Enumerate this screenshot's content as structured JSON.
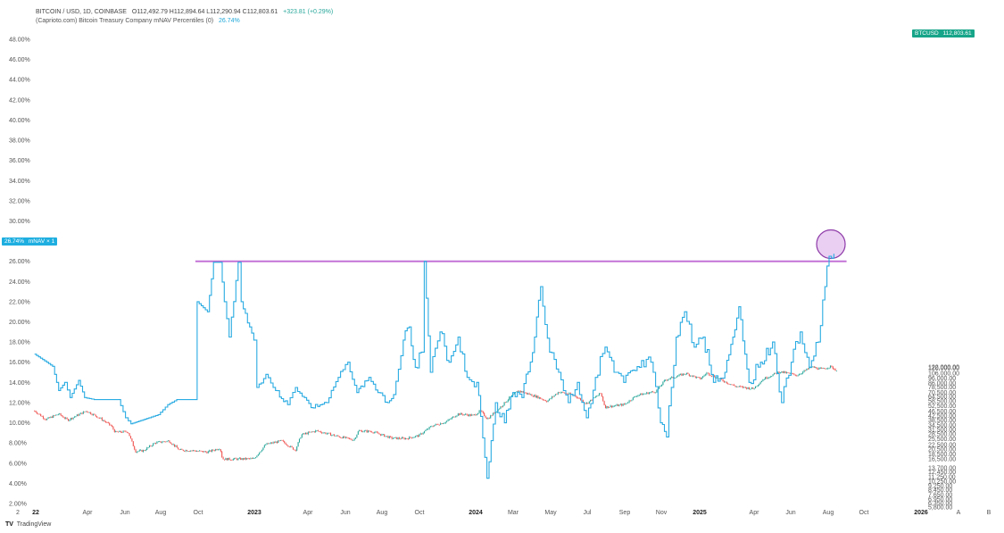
{
  "legend": {
    "line1": {
      "symbol": "BITCOIN / USD, 1D, COINBASE",
      "ohlc": "O112,492.79  H112,894.64  L112,290.94  C112,803.61",
      "change": "+323.81 (+0.29%)"
    },
    "line2": {
      "indicator": "(Caprioto.com) Bitcoin Treasury Company mNAV Percentiles (0)",
      "value": "26.74%"
    }
  },
  "price_tag": {
    "symbol": "BTCUSD",
    "value": "112,803.61"
  },
  "mnav_tag": {
    "value": "26.74%",
    "label": "mNAV × 1"
  },
  "brand": {
    "icon": "tradingview-logo-icon",
    "logo": "TV",
    "name": "TradingView"
  },
  "colors": {
    "mnav_line": "#29abe2",
    "candle_up": "#26a69a",
    "candle_down": "#ef5350",
    "resistance_line": "#c06ad4",
    "highlight_circle": "#d8a8e8",
    "price_tag": "#17a589"
  },
  "chart_data": {
    "type": "line",
    "x_labels": [
      "2",
      "22",
      "Apr",
      "Jun",
      "Aug",
      "Oct",
      "2023",
      "Apr",
      "Jun",
      "Aug",
      "Oct",
      "2024",
      "Mar",
      "May",
      "Jul",
      "Sep",
      "Nov",
      "2025",
      "Apr",
      "Jun",
      "Aug",
      "Oct",
      "2026",
      "A",
      "B"
    ],
    "bold_x_labels": [
      "22",
      "2023",
      "2024",
      "2025",
      "2026"
    ],
    "left_axis": {
      "unit": "percent",
      "ticks": [
        "48.00%",
        "46.00%",
        "44.00%",
        "42.00%",
        "40.00%",
        "38.00%",
        "36.00%",
        "34.00%",
        "32.00%",
        "30.00%",
        "28.00%",
        "26.00%",
        "24.00%",
        "22.00%",
        "20.00%",
        "18.00%",
        "16.00%",
        "14.00%",
        "12.00%",
        "10.00%",
        "8.00%",
        "6.00%",
        "4.00%",
        "2.00%"
      ],
      "range": [
        2,
        48
      ]
    },
    "right_axis": {
      "scale": "log",
      "ticks": [
        "122,000.00",
        "120,000.00",
        "106,000.00",
        "96,000.00",
        "86,000.00",
        "78,500.00",
        "70,500.00",
        "64,500.00",
        "58,500.00",
        "52,500.00",
        "46,500.00",
        "42,500.00",
        "38,500.00",
        "34,500.00",
        "31,500.00",
        "28,500.00",
        "25,500.00",
        "22,500.00",
        "20,500.00",
        "18,500.00",
        "16,500.00",
        "13,700.00",
        "12,450.00",
        "11,250.00",
        "10,250.00",
        "9,250.00",
        "8,450.00",
        "7,650.00",
        "6,950.00",
        "6,350.00",
        "5,800.00"
      ]
    },
    "series": [
      {
        "name": "BTCUSD",
        "axis": "right",
        "style": "candles",
        "points": [
          [
            "2022-01-01",
            47000
          ],
          [
            "2022-01-20",
            39000
          ],
          [
            "2022-02-10",
            44000
          ],
          [
            "2022-02-25",
            38500
          ],
          [
            "2022-03-28",
            47000
          ],
          [
            "2022-04-20",
            40000
          ],
          [
            "2022-05-08",
            34000
          ],
          [
            "2022-05-15",
            29500
          ],
          [
            "2022-06-05",
            30000
          ],
          [
            "2022-06-14",
            22000
          ],
          [
            "2022-06-18",
            19500
          ],
          [
            "2022-07-01",
            19800
          ],
          [
            "2022-07-20",
            23500
          ],
          [
            "2022-08-12",
            24500
          ],
          [
            "2022-08-30",
            20000
          ],
          [
            "2022-09-15",
            20000
          ],
          [
            "2022-10-15",
            19200
          ],
          [
            "2022-11-05",
            21000
          ],
          [
            "2022-11-09",
            16500
          ],
          [
            "2022-11-25",
            16500
          ],
          [
            "2022-12-31",
            16600
          ],
          [
            "2023-01-20",
            22700
          ],
          [
            "2023-02-15",
            24500
          ],
          [
            "2023-03-10",
            20000
          ],
          [
            "2023-03-20",
            28000
          ],
          [
            "2023-04-14",
            30500
          ],
          [
            "2023-05-20",
            27000
          ],
          [
            "2023-06-15",
            25000
          ],
          [
            "2023-06-23",
            30500
          ],
          [
            "2023-07-15",
            30000
          ],
          [
            "2023-08-17",
            26000
          ],
          [
            "2023-09-10",
            25800
          ],
          [
            "2023-10-01",
            27500
          ],
          [
            "2023-10-23",
            34000
          ],
          [
            "2023-11-15",
            37000
          ],
          [
            "2023-12-05",
            44000
          ],
          [
            "2023-12-31",
            42500
          ],
          [
            "2024-01-11",
            47000
          ],
          [
            "2024-01-23",
            39500
          ],
          [
            "2024-02-15",
            52000
          ],
          [
            "2024-02-28",
            62000
          ],
          [
            "2024-03-14",
            73000
          ],
          [
            "2024-04-15",
            63500
          ],
          [
            "2024-05-01",
            58000
          ],
          [
            "2024-05-20",
            71000
          ],
          [
            "2024-06-15",
            66000
          ],
          [
            "2024-07-05",
            55000
          ],
          [
            "2024-07-29",
            69000
          ],
          [
            "2024-08-05",
            51000
          ],
          [
            "2024-09-06",
            54000
          ],
          [
            "2024-09-27",
            66000
          ],
          [
            "2024-10-29",
            72000
          ],
          [
            "2024-11-13",
            92000
          ],
          [
            "2024-12-17",
            106000
          ],
          [
            "2025-01-10",
            94000
          ],
          [
            "2025-01-21",
            107000
          ],
          [
            "2025-02-25",
            86000
          ],
          [
            "2025-03-10",
            80000
          ],
          [
            "2025-04-08",
            76000
          ],
          [
            "2025-04-25",
            94000
          ],
          [
            "2025-05-22",
            110000
          ],
          [
            "2025-06-20",
            102000
          ],
          [
            "2025-07-14",
            122000
          ],
          [
            "2025-07-31",
            116000
          ],
          [
            "2025-08-14",
            123000
          ],
          [
            "2025-08-25",
            112800
          ]
        ]
      },
      {
        "name": "mNAV",
        "axis": "left",
        "style": "step-line",
        "points": [
          [
            "2022-01-01",
            16.8
          ],
          [
            "2022-01-31",
            15.6
          ],
          [
            "2022-02-10",
            13.2
          ],
          [
            "2022-02-20",
            14.0
          ],
          [
            "2022-03-01",
            12.5
          ],
          [
            "2022-03-15",
            14.2
          ],
          [
            "2022-03-25",
            12.5
          ],
          [
            "2022-04-10",
            12.3
          ],
          [
            "2022-05-20",
            12.3
          ],
          [
            "2022-06-01",
            10.5
          ],
          [
            "2022-06-10",
            9.9
          ],
          [
            "2022-07-10",
            10.5
          ],
          [
            "2022-07-25",
            10.8
          ],
          [
            "2022-08-10",
            11.8
          ],
          [
            "2022-08-25",
            12.3
          ],
          [
            "2022-09-25",
            12.3
          ],
          [
            "2022-09-28",
            22.0
          ],
          [
            "2022-10-15",
            21.0
          ],
          [
            "2022-10-25",
            25.9
          ],
          [
            "2022-11-05",
            25.9
          ],
          [
            "2022-11-12",
            22.0
          ],
          [
            "2022-11-20",
            18.5
          ],
          [
            "2022-12-05",
            25.9
          ],
          [
            "2022-12-10",
            22.0
          ],
          [
            "2022-12-31",
            18.2
          ],
          [
            "2023-01-05",
            13.5
          ],
          [
            "2023-01-20",
            14.8
          ],
          [
            "2023-02-05",
            13.2
          ],
          [
            "2023-02-25",
            11.8
          ],
          [
            "2023-03-10",
            13.5
          ],
          [
            "2023-03-25",
            12.5
          ],
          [
            "2023-04-05",
            11.5
          ],
          [
            "2023-05-01",
            12.0
          ],
          [
            "2023-05-20",
            14.5
          ],
          [
            "2023-06-05",
            16.0
          ],
          [
            "2023-06-20",
            13.0
          ],
          [
            "2023-07-10",
            14.5
          ],
          [
            "2023-07-25",
            13.0
          ],
          [
            "2023-08-10",
            12.0
          ],
          [
            "2023-08-20",
            12.8
          ],
          [
            "2023-09-05",
            18.2
          ],
          [
            "2023-09-15",
            19.5
          ],
          [
            "2023-09-25",
            15.5
          ],
          [
            "2023-10-05",
            17.0
          ],
          [
            "2023-10-10",
            26.0
          ],
          [
            "2023-10-20",
            15.0
          ],
          [
            "2023-11-05",
            19.0
          ],
          [
            "2023-11-20",
            16.0
          ],
          [
            "2023-12-05",
            18.5
          ],
          [
            "2023-12-20",
            14.5
          ],
          [
            "2024-01-05",
            14.0
          ],
          [
            "2024-01-15",
            8.5
          ],
          [
            "2024-01-22",
            4.5
          ],
          [
            "2024-02-05",
            12.0
          ],
          [
            "2024-02-20",
            10.0
          ],
          [
            "2024-03-05",
            13.0
          ],
          [
            "2024-03-20",
            12.5
          ],
          [
            "2024-04-10",
            18.5
          ],
          [
            "2024-04-20",
            23.5
          ],
          [
            "2024-05-05",
            17.0
          ],
          [
            "2024-05-20",
            15.0
          ],
          [
            "2024-06-05",
            12.0
          ],
          [
            "2024-06-20",
            14.0
          ],
          [
            "2024-07-05",
            10.5
          ],
          [
            "2024-07-20",
            14.5
          ],
          [
            "2024-08-05",
            17.5
          ],
          [
            "2024-08-20",
            15.0
          ],
          [
            "2024-09-05",
            14.0
          ],
          [
            "2024-10-01",
            15.5
          ],
          [
            "2024-10-20",
            16.0
          ],
          [
            "2024-11-05",
            10.0
          ],
          [
            "2024-11-15",
            8.6
          ],
          [
            "2024-12-01",
            18.5
          ],
          [
            "2024-12-15",
            21.0
          ],
          [
            "2024-12-31",
            17.5
          ],
          [
            "2025-01-15",
            18.5
          ],
          [
            "2025-02-01",
            14.0
          ],
          [
            "2025-02-20",
            15.0
          ],
          [
            "2025-03-15",
            21.5
          ],
          [
            "2025-04-01",
            14.0
          ],
          [
            "2025-04-20",
            16.0
          ],
          [
            "2025-05-10",
            18.0
          ],
          [
            "2025-05-25",
            12.0
          ],
          [
            "2025-06-10",
            16.0
          ],
          [
            "2025-06-25",
            19.0
          ],
          [
            "2025-07-10",
            15.5
          ],
          [
            "2025-07-25",
            18.0
          ],
          [
            "2025-08-05",
            23.5
          ],
          [
            "2025-08-12",
            26.5
          ],
          [
            "2025-08-20",
            26.74
          ]
        ]
      }
    ],
    "annotations": [
      {
        "type": "horizontal-line",
        "axis": "left",
        "value": 26.0,
        "from": "2022-09-25",
        "to": "2025-09-10"
      },
      {
        "type": "circle",
        "axis": "left",
        "at": [
          "2025-08-15",
          27.7
        ]
      }
    ]
  }
}
